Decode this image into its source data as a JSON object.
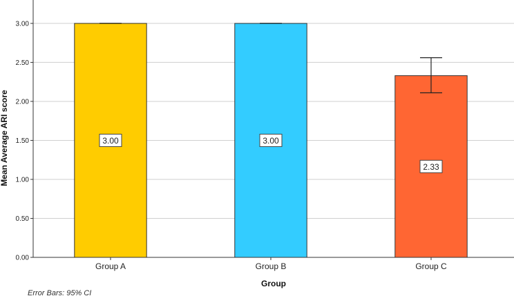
{
  "chart_data": {
    "type": "bar",
    "categories": [
      "Group A",
      "Group B",
      "Group C"
    ],
    "values": [
      3.0,
      3.0,
      2.33
    ],
    "value_labels": [
      "3.00",
      "3.00",
      "2.33"
    ],
    "error_bars": [
      {
        "lower": 3.0,
        "upper": 3.0
      },
      {
        "lower": 3.0,
        "upper": 3.0
      },
      {
        "lower": 2.11,
        "upper": 2.56
      }
    ],
    "colors": [
      "#FFCC00",
      "#33CCFF",
      "#FF6633"
    ],
    "xlabel": "Group",
    "ylabel": "Mean Average ARI score",
    "ylim": [
      0,
      3.3
    ],
    "yticks": [
      0.0,
      0.5,
      1.0,
      1.5,
      2.0,
      2.5,
      3.0
    ],
    "ytick_labels": [
      "0.00",
      "0.50",
      "1.00",
      "1.50",
      "2.00",
      "2.50",
      "3.00"
    ],
    "grid": true,
    "footnote": "Error Bars: 95% CI"
  }
}
